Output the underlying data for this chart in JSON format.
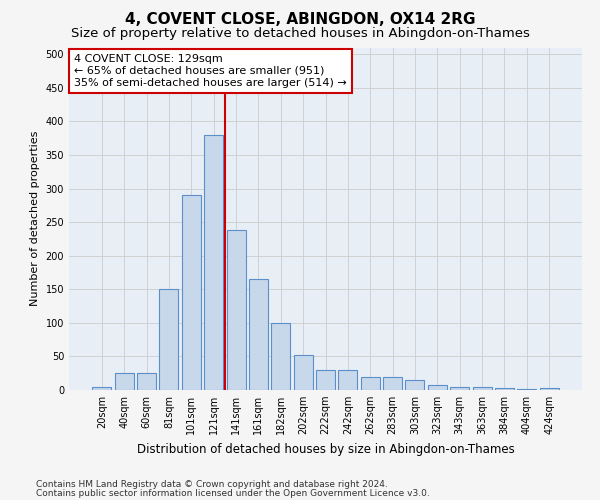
{
  "title": "4, COVENT CLOSE, ABINGDON, OX14 2RG",
  "subtitle": "Size of property relative to detached houses in Abingdon-on-Thames",
  "xlabel": "Distribution of detached houses by size in Abingdon-on-Thames",
  "ylabel": "Number of detached properties",
  "footer_line1": "Contains HM Land Registry data © Crown copyright and database right 2024.",
  "footer_line2": "Contains public sector information licensed under the Open Government Licence v3.0.",
  "categories": [
    "20sqm",
    "40sqm",
    "60sqm",
    "81sqm",
    "101sqm",
    "121sqm",
    "141sqm",
    "161sqm",
    "182sqm",
    "202sqm",
    "222sqm",
    "242sqm",
    "262sqm",
    "283sqm",
    "303sqm",
    "323sqm",
    "343sqm",
    "363sqm",
    "384sqm",
    "404sqm",
    "424sqm"
  ],
  "values": [
    5,
    25,
    25,
    150,
    290,
    380,
    238,
    165,
    100,
    52,
    30,
    30,
    20,
    20,
    15,
    8,
    5,
    4,
    3,
    1,
    3
  ],
  "bar_color": "#c8d8eb",
  "bar_edge_color": "#5b8fc9",
  "bar_edge_width": 0.8,
  "vline_color": "#cc0000",
  "annotation_line1": "4 COVENT CLOSE: 129sqm",
  "annotation_line2": "← 65% of detached houses are smaller (951)",
  "annotation_line3": "35% of semi-detached houses are larger (514) →",
  "annotation_box_color": "#ffffff",
  "annotation_box_edge_color": "#cc0000",
  "ylim": [
    0,
    510
  ],
  "yticks": [
    0,
    50,
    100,
    150,
    200,
    250,
    300,
    350,
    400,
    450,
    500
  ],
  "grid_color": "#cccccc",
  "plot_bg_color": "#e8eef6",
  "fig_bg_color": "#f5f5f5",
  "title_fontsize": 11,
  "subtitle_fontsize": 9.5,
  "xlabel_fontsize": 8.5,
  "ylabel_fontsize": 8,
  "tick_fontsize": 7,
  "annotation_fontsize": 8,
  "footer_fontsize": 6.5,
  "vline_xindex": 5.5
}
